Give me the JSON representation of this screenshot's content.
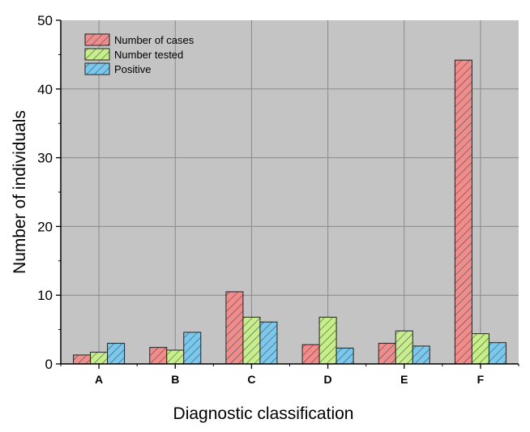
{
  "chart_data": {
    "type": "bar",
    "title": "",
    "xlabel": "Diagnostic classification",
    "ylabel": "Number of individuals",
    "ylim": [
      0,
      50
    ],
    "yticks": [
      0,
      10,
      20,
      30,
      40,
      50
    ],
    "grid": true,
    "legend_position": "top-left",
    "categories": [
      "A",
      "B",
      "C",
      "D",
      "E",
      "F"
    ],
    "series": [
      {
        "name": "Number of cases",
        "color": "#f08c8c",
        "values": [
          1.3,
          2.4,
          10.5,
          2.8,
          3.0,
          44.2
        ]
      },
      {
        "name": "Number tested",
        "color": "#c6ee8a",
        "values": [
          1.7,
          2.0,
          6.8,
          6.8,
          4.8,
          4.4
        ]
      },
      {
        "name": "Positive",
        "color": "#7ac8ee",
        "values": [
          3.0,
          4.6,
          6.1,
          2.3,
          2.6,
          3.1
        ]
      }
    ]
  }
}
